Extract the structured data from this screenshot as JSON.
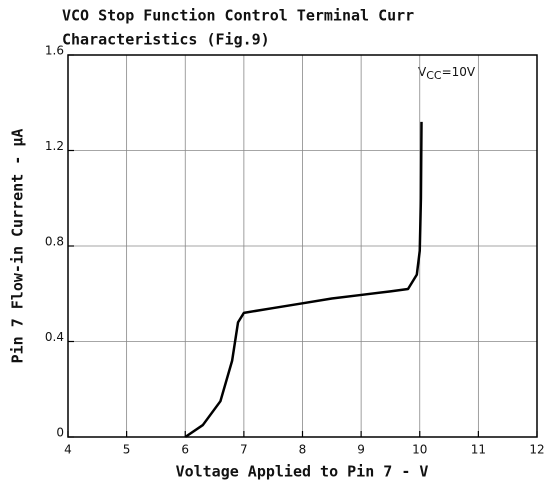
{
  "chart_data": {
    "type": "line",
    "title": [
      "VCO Stop Function Control Terminal Curr",
      "Characteristics (Fig.9)"
    ],
    "x_label": "Voltage Applied to Pin 7 - V",
    "y_label": "Pin 7 Flow-in Current - μA",
    "annotation": {
      "base": "V",
      "sub": "CC",
      "rest": "=10V"
    },
    "xlim": [
      4,
      12
    ],
    "xticks": [
      4,
      5,
      6,
      7,
      8,
      9,
      10,
      11,
      12
    ],
    "ylim": [
      0,
      1.6
    ],
    "yticks": [
      0,
      0.4,
      0.8,
      1.2,
      1.6
    ],
    "grid": true,
    "series": [
      {
        "color": "#000000",
        "x": [
          6.0,
          6.3,
          6.6,
          6.8,
          6.9,
          7.0,
          7.5,
          8.0,
          8.5,
          9.0,
          9.5,
          9.8,
          9.95,
          10.0,
          10.02,
          10.03
        ],
        "values": [
          0,
          0.05,
          0.15,
          0.32,
          0.48,
          0.52,
          0.54,
          0.56,
          0.58,
          0.595,
          0.61,
          0.62,
          0.68,
          0.78,
          1.0,
          1.32
        ]
      }
    ]
  }
}
